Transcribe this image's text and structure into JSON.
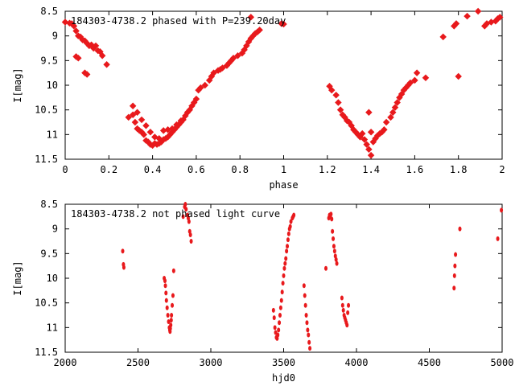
{
  "chart_data": [
    {
      "type": "scatter",
      "title": "184303-4738.2 phased with P=239.20day",
      "xlabel": "phase",
      "ylabel": "I[mag]",
      "xlim": [
        0,
        2
      ],
      "ylim": [
        8.5,
        11.5
      ],
      "y_inverted": true,
      "grid": false,
      "x_ticks": [
        "0",
        "0.2",
        "0.4",
        "0.6",
        "0.8",
        "1",
        "1.2",
        "1.4",
        "1.6",
        "1.8",
        "2"
      ],
      "y_ticks": [
        "8.5",
        "9",
        "9.5",
        "10",
        "10.5",
        "11",
        "11.5"
      ],
      "marker_color": "#e8191c",
      "series": [
        {
          "x": [
            0.0,
            0.02,
            0.03,
            0.04,
            0.05,
            0.06,
            0.07,
            0.08,
            0.09,
            0.1,
            0.11,
            0.12,
            0.13,
            0.14,
            0.15,
            0.16,
            0.17,
            0.19,
            0.05,
            0.06,
            0.09,
            0.1,
            0.29,
            0.31,
            0.32,
            0.33,
            0.34,
            0.35,
            0.36,
            0.37,
            0.38,
            0.39,
            0.4,
            0.41,
            0.42,
            0.43,
            0.44,
            0.45,
            0.46,
            0.47,
            0.48,
            0.49,
            0.5,
            0.51,
            0.52,
            0.53,
            0.54,
            0.55,
            0.56,
            0.57,
            0.58,
            0.59,
            0.6,
            0.31,
            0.33,
            0.35,
            0.37,
            0.39,
            0.41,
            0.43,
            0.45,
            0.47,
            0.49,
            0.51,
            0.53,
            0.61,
            0.62,
            0.64,
            0.66,
            0.67,
            0.68,
            0.7,
            0.71,
            0.72,
            0.74,
            0.75,
            0.76,
            0.77,
            0.79,
            0.81,
            0.82,
            0.83,
            0.84,
            0.85,
            0.86,
            0.87,
            0.88,
            0.89,
            0.85,
            0.99,
            1.0,
            1.21,
            1.22,
            1.24,
            1.25,
            1.26,
            1.27,
            1.28,
            1.29,
            1.3,
            1.31,
            1.32,
            1.33,
            1.34,
            1.35,
            1.36,
            1.37,
            1.38,
            1.39,
            1.4,
            1.41,
            1.42,
            1.43,
            1.44,
            1.45,
            1.46,
            1.47,
            1.49,
            1.5,
            1.51,
            1.52,
            1.53,
            1.54,
            1.55,
            1.56,
            1.57,
            1.58,
            1.6,
            1.61,
            1.65,
            1.4,
            1.39,
            1.73,
            1.78,
            1.79,
            1.8,
            1.84,
            1.89,
            1.92,
            1.93,
            1.95,
            1.97,
            1.98,
            1.99
          ],
          "y": [
            8.72,
            8.74,
            8.75,
            8.8,
            8.9,
            9.0,
            9.02,
            9.08,
            9.1,
            9.15,
            9.2,
            9.18,
            9.25,
            9.2,
            9.3,
            9.32,
            9.4,
            9.58,
            9.42,
            9.45,
            9.75,
            9.78,
            10.65,
            10.6,
            10.75,
            10.88,
            10.92,
            10.95,
            11.0,
            11.12,
            11.15,
            11.2,
            11.22,
            11.18,
            11.2,
            11.18,
            11.15,
            11.1,
            11.08,
            11.05,
            11.0,
            10.95,
            10.9,
            10.85,
            10.8,
            10.75,
            10.7,
            10.62,
            10.55,
            10.5,
            10.42,
            10.35,
            10.28,
            10.42,
            10.55,
            10.7,
            10.82,
            10.95,
            11.05,
            11.08,
            10.92,
            10.9,
            10.88,
            10.8,
            10.72,
            10.1,
            10.05,
            10.0,
            9.9,
            9.82,
            9.75,
            9.7,
            9.68,
            9.65,
            9.6,
            9.55,
            9.5,
            9.45,
            9.4,
            9.35,
            9.28,
            9.2,
            9.12,
            9.05,
            9.0,
            8.95,
            8.92,
            8.88,
            8.62,
            8.75,
            8.76,
            10.02,
            10.1,
            10.2,
            10.35,
            10.5,
            10.6,
            10.65,
            10.72,
            10.75,
            10.82,
            10.9,
            10.95,
            11.0,
            11.05,
            10.98,
            11.1,
            11.2,
            11.3,
            11.42,
            11.15,
            11.08,
            11.02,
            10.98,
            10.95,
            10.9,
            10.75,
            10.65,
            10.55,
            10.45,
            10.35,
            10.25,
            10.18,
            10.1,
            10.05,
            10.0,
            9.95,
            9.9,
            9.75,
            9.85,
            10.95,
            10.55,
            9.02,
            8.8,
            8.75,
            9.82,
            8.6,
            8.5,
            8.8,
            8.75,
            8.72,
            8.7,
            8.65,
            8.62
          ]
        }
      ]
    },
    {
      "type": "scatter",
      "title": "184303-4738.2 not phased light curve",
      "xlabel": "hjd0",
      "ylabel": "I[mag]",
      "xlim": [
        2000,
        5000
      ],
      "ylim": [
        8.5,
        11.5
      ],
      "y_inverted": true,
      "grid": false,
      "x_ticks": [
        "2000",
        "2500",
        "3000",
        "3500",
        "4000",
        "4500",
        "5000"
      ],
      "y_ticks": [
        "8.5",
        "9",
        "9.5",
        "10",
        "10.5",
        "11",
        "11.5"
      ],
      "marker_color": "#e8191c",
      "series": [
        {
          "x": [
            2395,
            2400,
            2403,
            2680,
            2685,
            2688,
            2692,
            2695,
            2700,
            2705,
            2710,
            2715,
            2718,
            2720,
            2722,
            2725,
            2728,
            2730,
            2735,
            2740,
            2745,
            2810,
            2820,
            2825,
            2830,
            2840,
            2845,
            2850,
            2855,
            2860,
            2865,
            3430,
            3435,
            3440,
            3445,
            3450,
            3455,
            3460,
            3465,
            3470,
            3475,
            3480,
            3485,
            3490,
            3495,
            3500,
            3505,
            3510,
            3515,
            3520,
            3525,
            3530,
            3535,
            3540,
            3545,
            3550,
            3560,
            3565,
            3570,
            3640,
            3645,
            3650,
            3655,
            3660,
            3665,
            3670,
            3675,
            3680,
            3790,
            3810,
            3815,
            3820,
            3825,
            3830,
            3835,
            3840,
            3845,
            3850,
            3855,
            3860,
            3865,
            3900,
            3905,
            3910,
            3915,
            3920,
            3925,
            3930,
            3935,
            3940,
            3945,
            4670,
            4673,
            4676,
            4680,
            4710,
            4970,
            4995
          ],
          "y": [
            9.45,
            9.72,
            9.78,
            10.0,
            10.05,
            10.15,
            10.3,
            10.45,
            10.6,
            10.75,
            10.88,
            11.0,
            11.05,
            11.08,
            11.02,
            10.95,
            10.85,
            10.75,
            10.55,
            10.35,
            9.85,
            8.75,
            8.55,
            8.5,
            8.6,
            8.72,
            8.78,
            8.85,
            9.05,
            9.12,
            9.25,
            10.65,
            10.8,
            11.0,
            11.1,
            11.2,
            11.22,
            11.15,
            11.05,
            10.9,
            10.75,
            10.6,
            10.45,
            10.28,
            10.1,
            9.95,
            9.8,
            9.7,
            9.6,
            9.45,
            9.35,
            9.22,
            9.1,
            9.0,
            8.95,
            8.85,
            8.78,
            8.75,
            8.72,
            10.15,
            10.35,
            10.55,
            10.75,
            10.9,
            11.05,
            11.15,
            11.3,
            11.42,
            9.8,
            8.78,
            8.72,
            8.75,
            8.7,
            8.8,
            9.05,
            9.2,
            9.35,
            9.45,
            9.55,
            9.62,
            9.7,
            10.4,
            10.55,
            10.65,
            10.75,
            10.8,
            10.85,
            10.9,
            10.95,
            10.7,
            10.55,
            10.2,
            9.95,
            9.75,
            9.52,
            9.0,
            9.2,
            8.62
          ]
        }
      ]
    }
  ]
}
